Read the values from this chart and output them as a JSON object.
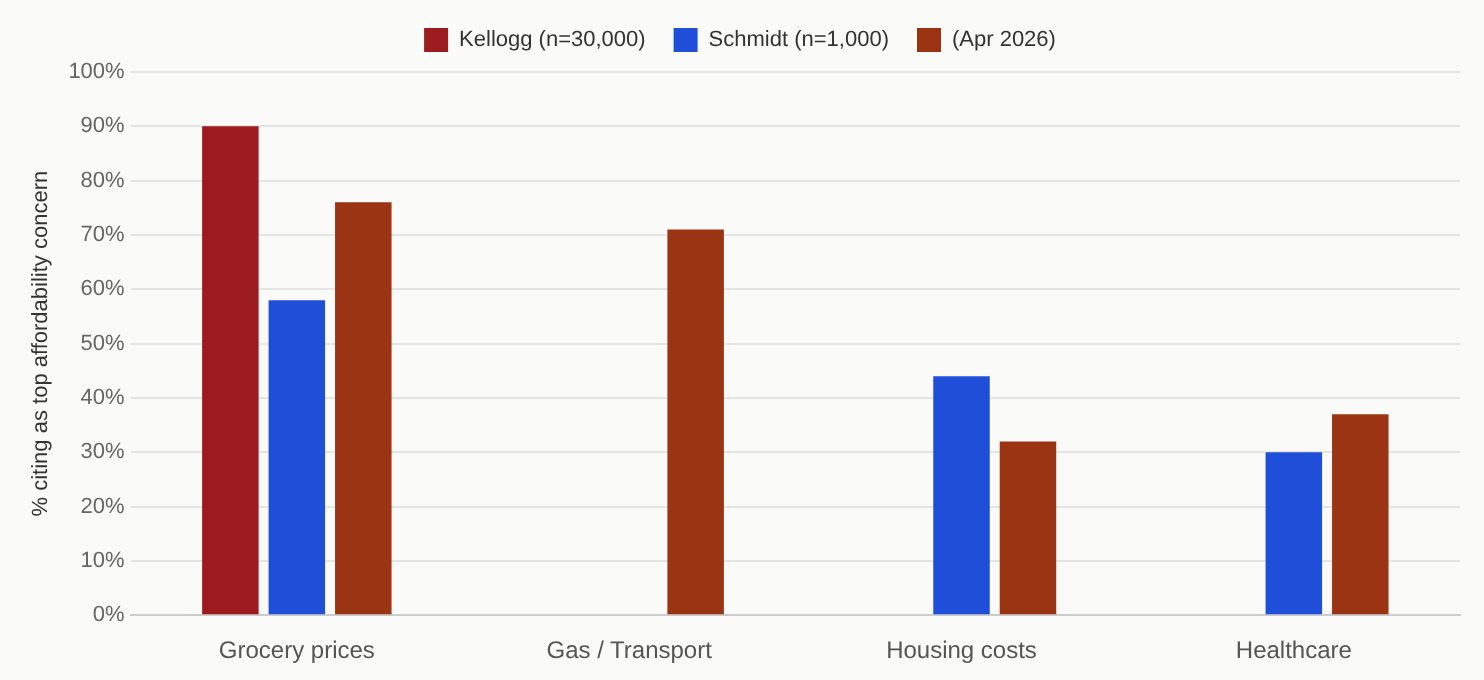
{
  "chart_data": {
    "type": "bar",
    "ylabel": "% citing as top affordability concern",
    "categories": [
      "Grocery prices",
      "Gas / Transport",
      "Housing costs",
      "Healthcare"
    ],
    "series": [
      {
        "name": "Kellogg (n=30,000)",
        "color": "#9b1b1f",
        "values": [
          90,
          null,
          null,
          null
        ]
      },
      {
        "name": "Schmidt (n=1,000)",
        "color": "#1f4fd8",
        "values": [
          58,
          null,
          44,
          30
        ]
      },
      {
        "name": "(Apr 2026)",
        "color": "#9a3412",
        "values": [
          76,
          71,
          32,
          37
        ]
      }
    ],
    "ylim": [
      0,
      100
    ],
    "yticks": [
      {
        "value": 0,
        "label": "0%"
      },
      {
        "value": 10,
        "label": "10%"
      },
      {
        "value": 20,
        "label": "20%"
      },
      {
        "value": 30,
        "label": "30%"
      },
      {
        "value": 40,
        "label": "40%"
      },
      {
        "value": 50,
        "label": "50%"
      },
      {
        "value": 60,
        "label": "60%"
      },
      {
        "value": 70,
        "label": "70%"
      },
      {
        "value": 80,
        "label": "80%"
      },
      {
        "value": 90,
        "label": "90%"
      },
      {
        "value": 100,
        "label": "100%"
      }
    ],
    "grid": "y",
    "legend": "top"
  }
}
